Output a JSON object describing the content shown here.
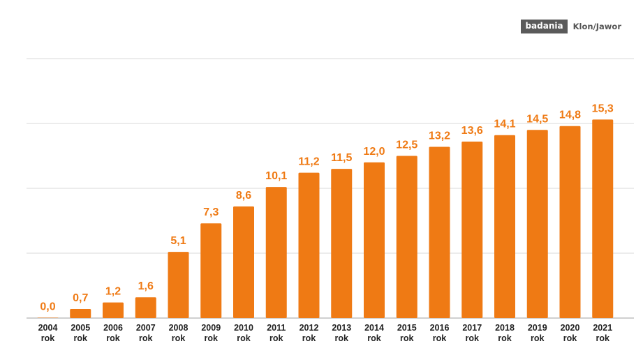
{
  "brand": {
    "tag": "badania",
    "name": "Klon/Jawor"
  },
  "colors": {
    "bar": "#ef7a14",
    "value_label": "#ef7a14",
    "grid": "#d9d9d9",
    "tick_text": "#222222"
  },
  "chart_data": {
    "type": "bar",
    "title": "",
    "xlabel": "",
    "ylabel": "",
    "ylim": [
      0,
      20
    ],
    "grid": true,
    "categories": [
      "2004",
      "2005",
      "2006",
      "2007",
      "2008",
      "2009",
      "2010",
      "2011",
      "2012",
      "2013",
      "2014",
      "2015",
      "2016",
      "2017",
      "2018",
      "2019",
      "2020",
      "2021"
    ],
    "category_suffix": "rok",
    "values": [
      0.0,
      0.7,
      1.2,
      1.6,
      5.1,
      7.3,
      8.6,
      10.1,
      11.2,
      11.5,
      12.0,
      12.5,
      13.2,
      13.6,
      14.1,
      14.5,
      14.8,
      15.3
    ],
    "value_labels": [
      "0,0",
      "0,7",
      "1,2",
      "1,6",
      "5,1",
      "7,3",
      "8,6",
      "10,1",
      "11,2",
      "11,5",
      "12,0",
      "12,5",
      "13,2",
      "13,6",
      "14,1",
      "14,5",
      "14,8",
      "15,3"
    ]
  }
}
